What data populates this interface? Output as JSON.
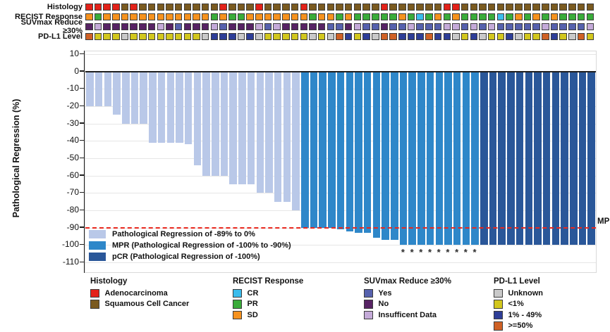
{
  "color_map": {
    "A": "#e32219",
    "S": "#7a5a20",
    "CR": "#3bbcec",
    "PR": "#3aac3a",
    "SD": "#f6921e",
    "Y": "#5661ad",
    "N": "#572364",
    "I": "#c4aad8",
    "U": "#c9c9c9",
    "L": "#d2c71d",
    "M": "#2e3e97",
    "H": "#cf6125",
    "light": "#b9c8e8",
    "mpr": "#2e87c9",
    "pcr": "#2a5799",
    "mpr_line": "#e8281e"
  },
  "tracks": {
    "rows": [
      {
        "label": "Histology",
        "values": [
          "A",
          "A",
          "A",
          "A",
          "S",
          "A",
          "S",
          "S",
          "S",
          "S",
          "S",
          "S",
          "S",
          "S",
          "S",
          "A",
          "S",
          "S",
          "S",
          "A",
          "S",
          "S",
          "S",
          "S",
          "A",
          "S",
          "S",
          "S",
          "S",
          "S",
          "S",
          "S",
          "S",
          "A",
          "S",
          "S",
          "S",
          "S",
          "S",
          "S",
          "A",
          "A",
          "S",
          "S",
          "S",
          "S",
          "S",
          "S",
          "S",
          "S",
          "S",
          "S",
          "S",
          "S",
          "S",
          "S",
          "S"
        ]
      },
      {
        "label": "RECIST Response",
        "values": [
          "SD",
          "PR",
          "SD",
          "SD",
          "SD",
          "SD",
          "SD",
          "SD",
          "SD",
          "SD",
          "SD",
          "SD",
          "SD",
          "SD",
          "PR",
          "SD",
          "PR",
          "PR",
          "SD",
          "SD",
          "SD",
          "SD",
          "SD",
          "SD",
          "SD",
          "PR",
          "SD",
          "SD",
          "PR",
          "SD",
          "PR",
          "PR",
          "PR",
          "PR",
          "PR",
          "SD",
          "PR",
          "CR",
          "PR",
          "SD",
          "PR",
          "SD",
          "PR",
          "PR",
          "PR",
          "PR",
          "CR",
          "PR",
          "SD",
          "PR",
          "SD",
          "PR",
          "SD",
          "PR",
          "PR",
          "PR",
          "PR"
        ]
      },
      {
        "label": "SUVmax Reduce ≥30%",
        "values": [
          "N",
          "I",
          "N",
          "N",
          "N",
          "N",
          "N",
          "N",
          "I",
          "N",
          "Y",
          "N",
          "N",
          "N",
          "I",
          "Y",
          "N",
          "N",
          "N",
          "I",
          "Y",
          "I",
          "N",
          "N",
          "N",
          "N",
          "N",
          "Y",
          "Y",
          "N",
          "I",
          "Y",
          "Y",
          "N",
          "Y",
          "Y",
          "I",
          "Y",
          "Y",
          "Y",
          "I",
          "I",
          "Y",
          "I",
          "Y",
          "I",
          "Y",
          "Y",
          "Y",
          "Y",
          "Y",
          "I",
          "Y",
          "Y",
          "Y",
          "Y",
          "I"
        ]
      },
      {
        "label": "PD-L1 Level",
        "values": [
          "H",
          "L",
          "L",
          "L",
          "U",
          "L",
          "L",
          "L",
          "L",
          "L",
          "L",
          "L",
          "L",
          "U",
          "M",
          "M",
          "M",
          "U",
          "M",
          "U",
          "L",
          "L",
          "L",
          "L",
          "L",
          "U",
          "L",
          "U",
          "H",
          "M",
          "L",
          "M",
          "U",
          "H",
          "H",
          "M",
          "M",
          "M",
          "H",
          "M",
          "M",
          "U",
          "L",
          "M",
          "U",
          "L",
          "L",
          "M",
          "U",
          "L",
          "L",
          "H",
          "M",
          "L",
          "U",
          "H",
          "L"
        ]
      }
    ]
  },
  "chart_data": {
    "type": "bar",
    "title": "",
    "xlabel": "",
    "ylabel": "Pathological Regression (%)",
    "ylim": [
      -110,
      10
    ],
    "yticks": [
      10,
      0,
      -10,
      -20,
      -30,
      -40,
      -50,
      -60,
      -70,
      -80,
      -90,
      -100,
      -110
    ],
    "grid": "horizontal",
    "values": [
      -20,
      -20,
      -20,
      -25,
      -30,
      -30,
      -30,
      -41,
      -41,
      -41,
      -41,
      -42,
      -54,
      -60,
      -60,
      -60,
      -65,
      -65,
      -65,
      -70,
      -70,
      -75,
      -75,
      -80,
      -90,
      -90,
      -90,
      -90,
      -91,
      -92,
      -93,
      -93,
      -96,
      -97,
      -97,
      -100,
      -100,
      -100,
      -100,
      -100,
      -100,
      -100,
      -100,
      -100,
      -100,
      -100,
      -100,
      -100,
      -100,
      -100,
      -100,
      -100,
      -100,
      -100,
      -100,
      -100,
      -100
    ],
    "bar_group_codes": "LLLLLLLLLLLLLLLLLLLLLLLLMMMMMMMMMMMMMMMMMMMMPPPPPPPPPPPPP",
    "group_code_map": {
      "L": "light",
      "M": "mpr",
      "P": "pcr"
    },
    "asterisk_indices": [
      35,
      36,
      37,
      38,
      39,
      40,
      41,
      42,
      43
    ],
    "asterisk_marker": "*",
    "reference_line": {
      "y": -90,
      "label": "MPR"
    },
    "legend": [
      {
        "group": "light",
        "label": "Pathological Regression of -89% to 0%"
      },
      {
        "group": "mpr",
        "label": "MPR (Pathological Regression of -100% to -90%)"
      },
      {
        "group": "pcr",
        "label": "pCR (Pathological Regression of -100%)"
      }
    ]
  },
  "bottom_legend": {
    "groups": [
      {
        "title": "Histology",
        "items": [
          {
            "code": "A",
            "label": "Adenocarcinoma"
          },
          {
            "code": "S",
            "label": "Squamous Cell Cancer"
          }
        ]
      },
      {
        "title": "RECIST Response",
        "items": [
          {
            "code": "CR",
            "label": "CR"
          },
          {
            "code": "PR",
            "label": "PR"
          },
          {
            "code": "SD",
            "label": "SD"
          }
        ]
      },
      {
        "title": "SUVmax Reduce ≥30%",
        "items": [
          {
            "code": "Y",
            "label": "Yes"
          },
          {
            "code": "N",
            "label": "No"
          },
          {
            "code": "I",
            "label": "Insufficent Data"
          }
        ]
      },
      {
        "title": "PD-L1 Level",
        "items": [
          {
            "code": "U",
            "label": "Unknown"
          },
          {
            "code": "L",
            "label": "<1%"
          },
          {
            "code": "M",
            "label": "1% - 49%"
          },
          {
            "code": "H",
            "label": ">=50%"
          }
        ]
      }
    ]
  }
}
